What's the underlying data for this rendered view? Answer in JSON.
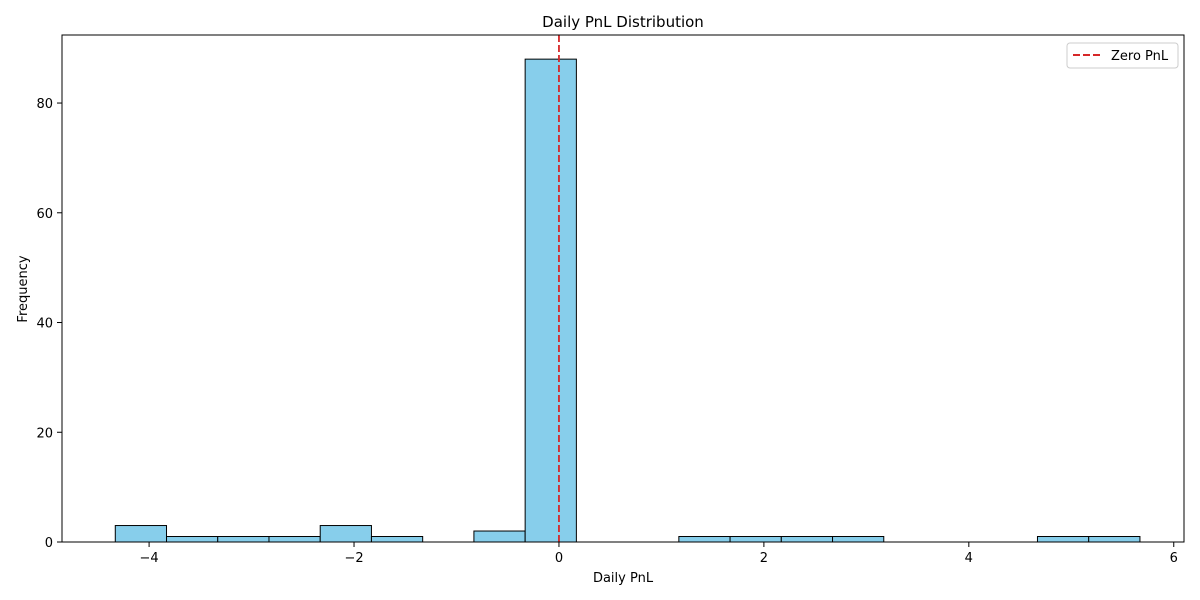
{
  "chart_data": {
    "type": "bar",
    "title": "Daily PnL Distribution",
    "xlabel": "Daily PnL",
    "ylabel": "Frequency",
    "xlim": [
      -4.85,
      6.1
    ],
    "ylim": [
      0,
      92.4
    ],
    "x_ticks": [
      -4,
      -2,
      0,
      2,
      4,
      6
    ],
    "x_tick_labels": [
      "−4",
      "−2",
      "0",
      "2",
      "4",
      "6"
    ],
    "y_ticks": [
      0,
      20,
      40,
      60,
      80
    ],
    "y_tick_labels": [
      "0",
      "20",
      "40",
      "60",
      "80"
    ],
    "bin_edges": [
      -4.33,
      -3.83,
      -3.33,
      -2.83,
      -2.33,
      -1.83,
      -1.33,
      -0.83,
      -0.33,
      0.17,
      0.67,
      1.17,
      1.67,
      2.17,
      2.67,
      3.17,
      3.67,
      4.17,
      4.67,
      5.17,
      5.67
    ],
    "counts": [
      3,
      1,
      1,
      1,
      3,
      1,
      0,
      2,
      88,
      0,
      0,
      1,
      1,
      1,
      1,
      0,
      0,
      0,
      1,
      1
    ],
    "bar_color": "#87ceeb",
    "bar_edge_color": "#000000",
    "reference_line": {
      "x": 0,
      "label": "Zero PnL",
      "color": "#d62728",
      "style": "dashed"
    },
    "legend_position": "top-right",
    "grid": false
  }
}
